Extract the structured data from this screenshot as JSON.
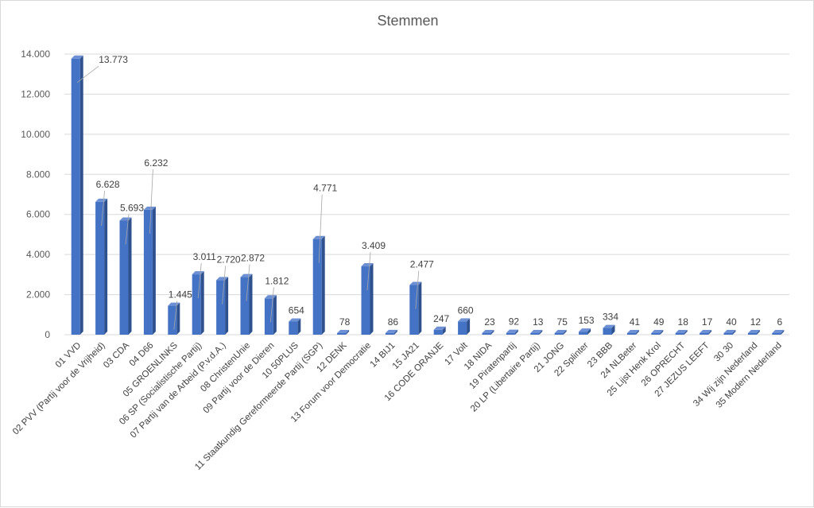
{
  "chart_data": {
    "type": "bar",
    "title": "Stemmen",
    "xlabel": "",
    "ylabel": "",
    "ylim": [
      0,
      14000
    ],
    "ytick_values": [
      0,
      2000,
      4000,
      6000,
      8000,
      10000,
      12000,
      14000
    ],
    "ytick_labels": [
      "0",
      "2.000",
      "4.000",
      "6.000",
      "8.000",
      "10.000",
      "12.000",
      "14.000"
    ],
    "grid": true,
    "legend": "none",
    "bar_color": "#4472c4",
    "categories": [
      "01 VVD",
      "02 PVV (Partij voor de Vrijheid)",
      "03 CDA",
      "04 D66",
      "05 GROENLINKS",
      "06 SP (Socialistische Partij)",
      "07 Partij van de Arbeid (P.v.d.A.)",
      "08 ChristenUnie",
      "09 Partij voor de Dieren",
      "10 50PLUS",
      "11 Staatkundig Gereformeerde Partij (SGP)",
      "12 DENK",
      "13 Forum voor Democratie",
      "14 BIJ1",
      "15 JA21",
      "16 CODE ORANJE",
      "17 Volt",
      "18 NIDA",
      "19 Piratenpartij",
      "20 LP (Libertaire Partij)",
      "21 JONG",
      "22 Splinter",
      "23 BBB",
      "24 NLBeter",
      "25 Lijst Henk Krol",
      "26 OPRECHT",
      "27 JEZUS LEEFT",
      "30 30",
      "34 Wij zijn Nederland",
      "35 Modern Nederland"
    ],
    "values": [
      13773,
      6628,
      5693,
      6232,
      1445,
      3011,
      2720,
      2872,
      1812,
      654,
      4771,
      78,
      3409,
      86,
      2477,
      247,
      660,
      23,
      92,
      13,
      75,
      153,
      334,
      41,
      49,
      18,
      17,
      40,
      12,
      6
    ],
    "data_labels": [
      "13.773",
      "6.628",
      "5.693",
      "6.232",
      "1.445",
      "3.011",
      "2.720",
      "2.872",
      "1.812",
      "654",
      "4.771",
      "78",
      "3.409",
      "86",
      "2.477",
      "247",
      "660",
      "23",
      "92",
      "13",
      "75",
      "153",
      "334",
      "41",
      "49",
      "18",
      "17",
      "40",
      "12",
      "6"
    ]
  }
}
